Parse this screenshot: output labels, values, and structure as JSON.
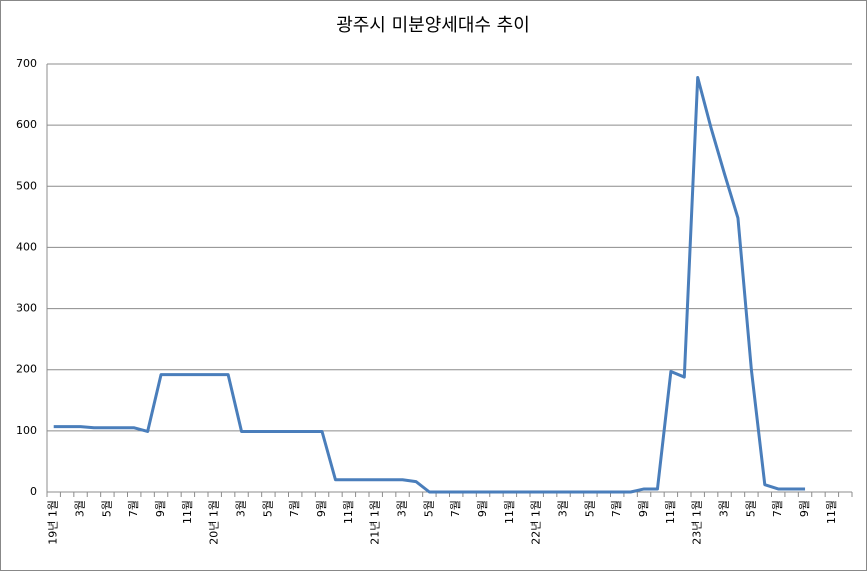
{
  "chart_data": {
    "type": "line",
    "title": "광주시 미분양세대수 추이",
    "categories": [
      "19년 1월",
      null,
      "3월",
      null,
      "5월",
      null,
      "7월",
      null,
      "9월",
      null,
      "11월",
      null,
      "20년 1월",
      null,
      "3월",
      null,
      "5월",
      null,
      "7월",
      null,
      "9월",
      null,
      "11월",
      null,
      "21년 1월",
      null,
      "3월",
      null,
      "5월",
      null,
      "7월",
      null,
      "9월",
      null,
      "11월",
      null,
      "22년 1월",
      null,
      "3월",
      null,
      "5월",
      null,
      "7월",
      null,
      "9월",
      null,
      "11월",
      null,
      "23년 1월",
      null,
      "3월",
      null,
      "5월",
      null,
      "7월",
      null,
      "9월",
      null,
      "11월",
      null
    ],
    "values": [
      107,
      107,
      107,
      105,
      105,
      105,
      105,
      99,
      192,
      192,
      192,
      192,
      192,
      192,
      99,
      99,
      99,
      99,
      99,
      99,
      99,
      20,
      20,
      20,
      20,
      20,
      20,
      17,
      0,
      0,
      0,
      0,
      0,
      0,
      0,
      0,
      0,
      0,
      0,
      0,
      0,
      0,
      0,
      0,
      5,
      5,
      197,
      188,
      678,
      595,
      520,
      448,
      200,
      12,
      5,
      5,
      5,
      null,
      null,
      null
    ],
    "color": "#4a7ebb",
    "ylim": [
      0,
      700
    ],
    "yticks": [
      0,
      100,
      200,
      300,
      400,
      500,
      600,
      700
    ],
    "grid": true
  }
}
